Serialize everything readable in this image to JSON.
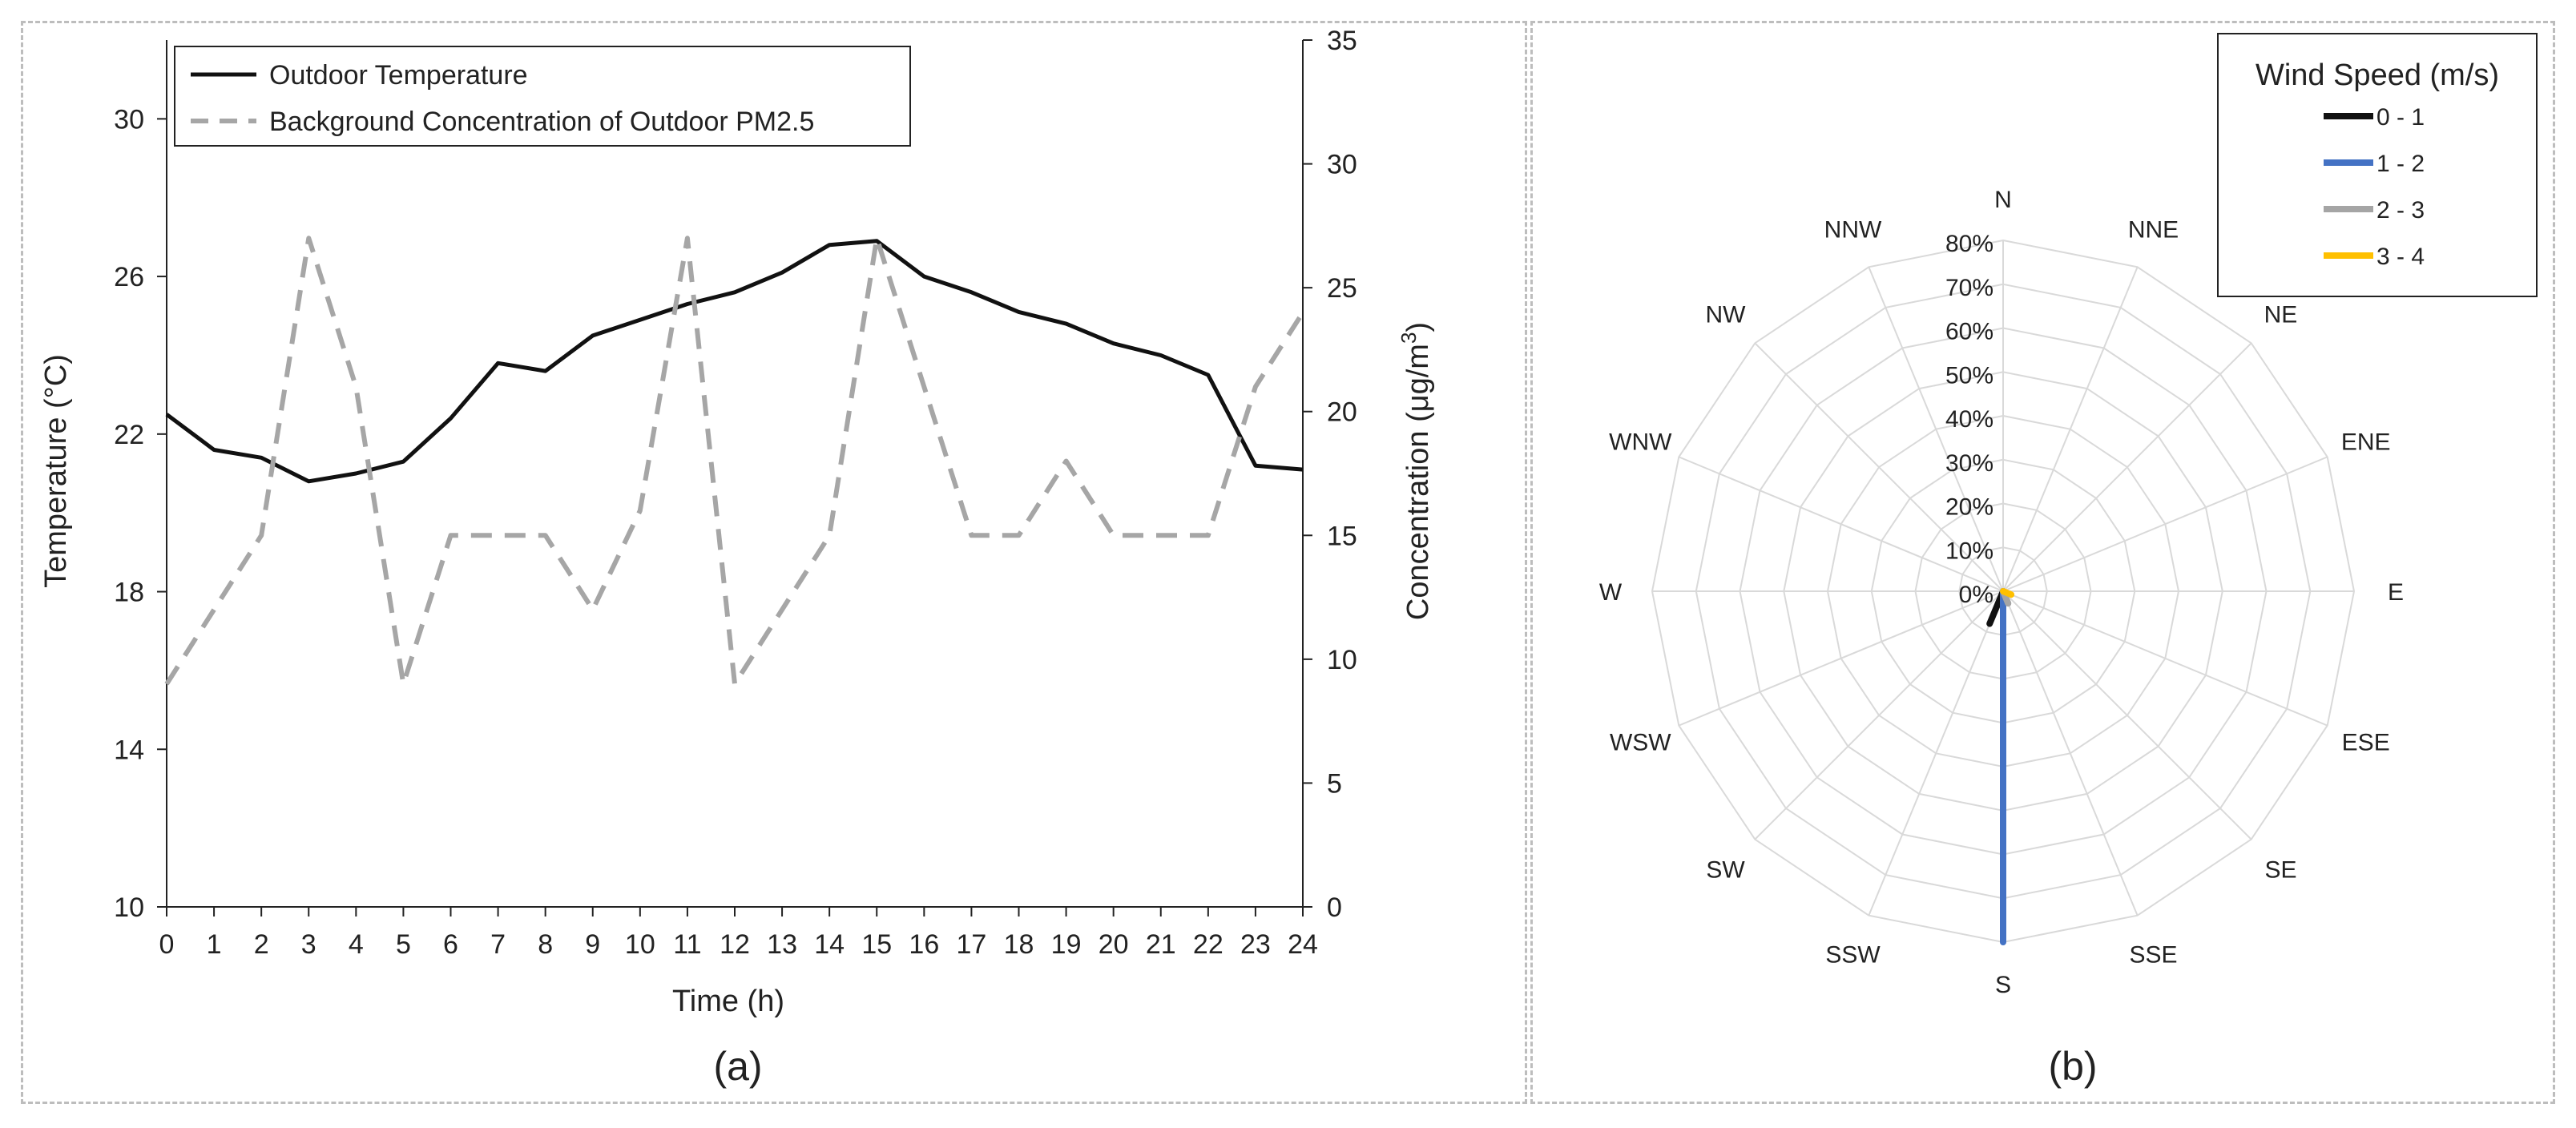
{
  "panels": {
    "a_label": "(a)",
    "b_label": "(b)"
  },
  "chart_data": [
    {
      "type": "line",
      "panel": "(a)",
      "xlabel": "Time (h)",
      "ylabel": "Temperature (°C)",
      "y2label": "Concentration (μg/m³)",
      "x": [
        0,
        1,
        2,
        3,
        4,
        5,
        6,
        7,
        8,
        9,
        10,
        11,
        12,
        13,
        14,
        15,
        16,
        17,
        18,
        19,
        20,
        21,
        22,
        23,
        24
      ],
      "xlim": [
        0,
        24
      ],
      "ylim": [
        10,
        32
      ],
      "yticks": [
        10,
        14,
        18,
        22,
        26,
        30
      ],
      "y2lim": [
        0,
        35
      ],
      "y2ticks": [
        0,
        5,
        10,
        15,
        20,
        25,
        30,
        35
      ],
      "legend_position": "top-left",
      "series": [
        {
          "name": "Outdoor Temperature",
          "axis": "left",
          "color": "#111111",
          "style": "solid",
          "values": [
            22.5,
            21.6,
            21.4,
            20.8,
            21.0,
            21.3,
            22.4,
            23.8,
            23.6,
            24.5,
            24.9,
            25.3,
            25.6,
            26.1,
            26.8,
            26.9,
            26.0,
            25.6,
            25.1,
            24.8,
            24.3,
            24.0,
            23.5,
            21.2,
            21.1
          ]
        },
        {
          "name": "Background Concentration of Outdoor PM2.5",
          "axis": "right",
          "color": "#a6a6a6",
          "style": "dashed",
          "values": [
            9,
            12,
            15,
            27,
            21,
            9,
            15,
            15,
            15,
            12,
            16,
            27,
            9,
            12,
            15,
            27,
            21,
            15,
            15,
            18,
            15,
            15,
            15,
            21,
            24
          ]
        }
      ]
    },
    {
      "type": "radar",
      "panel": "(b)",
      "title": "Wind Speed (m/s)",
      "directions": [
        "N",
        "NNE",
        "NE",
        "ENE",
        "E",
        "ESE",
        "SE",
        "SSE",
        "S",
        "SSW",
        "SW",
        "WSW",
        "W",
        "WNW",
        "NW",
        "NNW"
      ],
      "rlim": [
        0,
        80
      ],
      "rticks": [
        "0%",
        "10%",
        "20%",
        "30%",
        "40%",
        "50%",
        "60%",
        "70%",
        "80%"
      ],
      "rtick_values": [
        0,
        10,
        20,
        30,
        40,
        50,
        60,
        70,
        80
      ],
      "legend_position": "top-right",
      "series": [
        {
          "name": "0 - 1",
          "color": "#111111",
          "values": [
            0,
            0,
            0,
            0,
            0,
            0,
            0,
            0,
            0,
            8,
            0,
            0,
            0,
            0,
            0,
            0
          ]
        },
        {
          "name": "1 - 2",
          "color": "#4472c4",
          "values": [
            0,
            0,
            0,
            0,
            0,
            0,
            0,
            0,
            80,
            0,
            0,
            0,
            0,
            0,
            0,
            0
          ]
        },
        {
          "name": "2 - 3",
          "color": "#a5a5a5",
          "values": [
            0,
            0,
            0,
            0,
            0,
            0,
            0,
            3,
            0,
            0,
            0,
            0,
            0,
            0,
            0,
            0
          ]
        },
        {
          "name": "3 - 4",
          "color": "#ffc000",
          "values": [
            0,
            0,
            0,
            0,
            0,
            2,
            0,
            0,
            0,
            0,
            0,
            0,
            0,
            0,
            0,
            0
          ]
        }
      ]
    }
  ]
}
